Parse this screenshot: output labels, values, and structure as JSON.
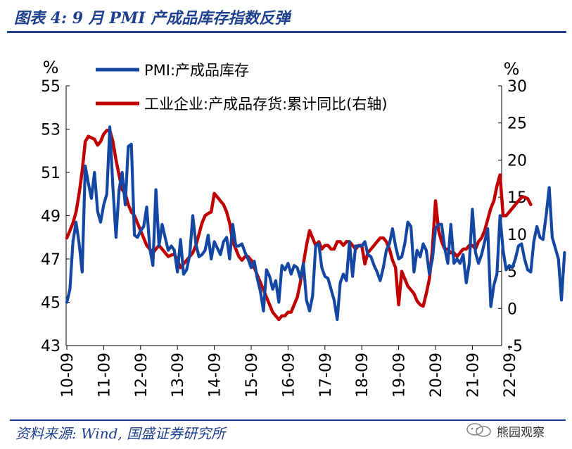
{
  "header": {
    "title": "图表 4:  9 月 PMI 产成品库存指数反弹"
  },
  "footer": {
    "source": "资料来源:  Wind,  国盛证券研究所",
    "watermark": "熊园观察"
  },
  "colors": {
    "pmi": "#1447a3",
    "industry": "#c00000",
    "accent": "#1f3f8f",
    "axis": "#000000"
  },
  "chart_data": {
    "type": "line",
    "left_unit": "%",
    "right_unit": "%",
    "x_ticks": [
      "10-09",
      "11-09",
      "12-09",
      "13-09",
      "14-09",
      "15-09",
      "16-09",
      "17-09",
      "18-09",
      "19-09",
      "20-09",
      "21-09",
      "22-09"
    ],
    "left_axis": {
      "min": 43,
      "max": 55,
      "ticks": [
        43,
        45,
        47,
        49,
        51,
        53,
        55
      ]
    },
    "right_axis": {
      "min": -5,
      "max": 30,
      "ticks": [
        -5,
        0,
        5,
        10,
        15,
        20,
        25,
        30
      ]
    },
    "grid": false,
    "legend_position": "top-left",
    "series": [
      {
        "name": "PMI:产成品库存",
        "axis": "left",
        "color": "#1447a3",
        "start": "2010-09",
        "values": [
          45.0,
          45.6,
          47.8,
          48.7,
          47.7,
          46.4,
          51.3,
          50.5,
          49.8,
          51.0,
          49.2,
          48.7,
          49.5,
          50.0,
          53.1,
          50.3,
          48.0,
          50.2,
          51.0,
          49.5,
          52.2,
          52.3,
          48.1,
          48.0,
          48.3,
          48.5,
          49.4,
          47.5,
          46.7,
          50.2,
          47.6,
          48.6,
          48.0,
          47.4,
          47.6,
          47.4,
          46.4,
          47.9,
          46.3,
          46.5,
          47.2,
          49.0,
          47.7,
          47.1,
          47.2,
          47.4,
          48.1,
          47.0,
          47.8,
          47.5,
          47.2,
          47.8,
          48.0,
          47.0,
          48.6,
          47.6,
          47.6,
          47.7,
          47.3,
          47.0,
          46.6,
          46.9,
          46.1,
          45.5,
          44.6,
          46.5,
          46.2,
          45.6,
          46.0,
          45.0,
          46.7,
          46.5,
          46.8,
          46.3,
          46.7,
          46.6,
          46.1,
          46.8,
          45.1,
          44.6,
          45.3,
          47.6,
          47.7,
          46.6,
          46.2,
          46.1,
          45.6,
          45.1,
          44.2,
          45.9,
          46.3,
          46.0,
          47.8,
          46.2,
          47.6,
          47.6,
          47.6,
          47.8,
          47.2,
          47.1,
          46.7,
          46.4,
          46.0,
          46.6,
          47.4,
          47.7,
          48.4,
          47.6,
          47.0,
          47.1,
          47.7,
          48.7,
          48.5,
          46.4,
          47.4,
          47.1,
          47.7,
          47.4,
          46.3,
          47.0,
          48.4,
          48.6,
          48.6,
          47.5,
          46.8,
          48.6,
          46.8,
          47.0,
          46.8,
          47.2,
          45.9,
          46.8,
          49.3,
          47.3,
          46.8,
          47.2,
          47.8,
          48.4,
          44.8,
          45.8,
          46.3,
          49.0,
          47.4,
          46.5,
          46.7,
          46.6,
          47.0,
          47.6,
          47.7,
          47.0,
          46.5,
          46.4,
          47.8,
          48.5,
          48.0,
          47.9,
          49.0,
          50.3,
          48.0,
          47.5,
          47.0,
          45.1,
          47.3
        ]
      },
      {
        "name": "工业企业:产成品存货:累计同比(右轴)",
        "axis": "right",
        "color": "#c00000",
        "start": "2010-09",
        "values": [
          9.5,
          10.5,
          11.5,
          13.0,
          15.5,
          18.5,
          22.5,
          23.2,
          23.0,
          22.8,
          22.0,
          22.5,
          23.5,
          24.0,
          24.0,
          22.5,
          20.0,
          18.0,
          16.0,
          15.5,
          14.0,
          13.0,
          12.5,
          11.5,
          10.5,
          9.5,
          8.5,
          8.0,
          7.5,
          8.0,
          8.5,
          8.0,
          7.5,
          7.0,
          7.2,
          7.3,
          6.5,
          5.5,
          6.0,
          6.5,
          7.0,
          7.5,
          8.5,
          10.0,
          11.5,
          12.5,
          12.8,
          13.0,
          15.5,
          15.0,
          14.5,
          14.0,
          13.0,
          11.5,
          9.0,
          8.0,
          7.0,
          6.5,
          7.0,
          7.0,
          6.5,
          5.5,
          4.5,
          3.5,
          2.5,
          1.5,
          0.5,
          -0.5,
          -1.0,
          -1.5,
          -1.0,
          -1.0,
          -0.5,
          -0.5,
          0.5,
          1.5,
          3.5,
          6.0,
          8.5,
          10.5,
          9.5,
          8.5,
          9.0,
          8.0,
          8.5,
          8.5,
          8.0,
          8.0,
          9.0,
          9.0,
          8.5,
          9.0,
          9.0,
          8.5,
          8.0,
          8.5,
          8.5,
          6.0,
          7.5,
          8.0,
          8.5,
          9.0,
          9.5,
          9.5,
          9.0,
          8.0,
          6.5,
          5.5,
          0.5,
          5.0,
          4.0,
          3.0,
          2.5,
          2.0,
          1.0,
          0.5,
          0.3,
          2.0,
          4.0,
          8.0,
          14.5,
          10.5,
          9.0,
          8.0,
          8.0,
          7.5,
          7.5,
          7.0,
          7.5,
          8.0,
          8.0,
          8.5,
          8.5,
          8.0,
          9.0,
          9.5,
          10.5,
          12.0,
          13.5,
          14.5,
          16.5,
          18.0,
          12.5,
          12.5,
          13.0,
          13.5,
          14.0,
          14.5,
          15.0,
          15.0,
          14.8,
          14.0
        ]
      }
    ]
  }
}
